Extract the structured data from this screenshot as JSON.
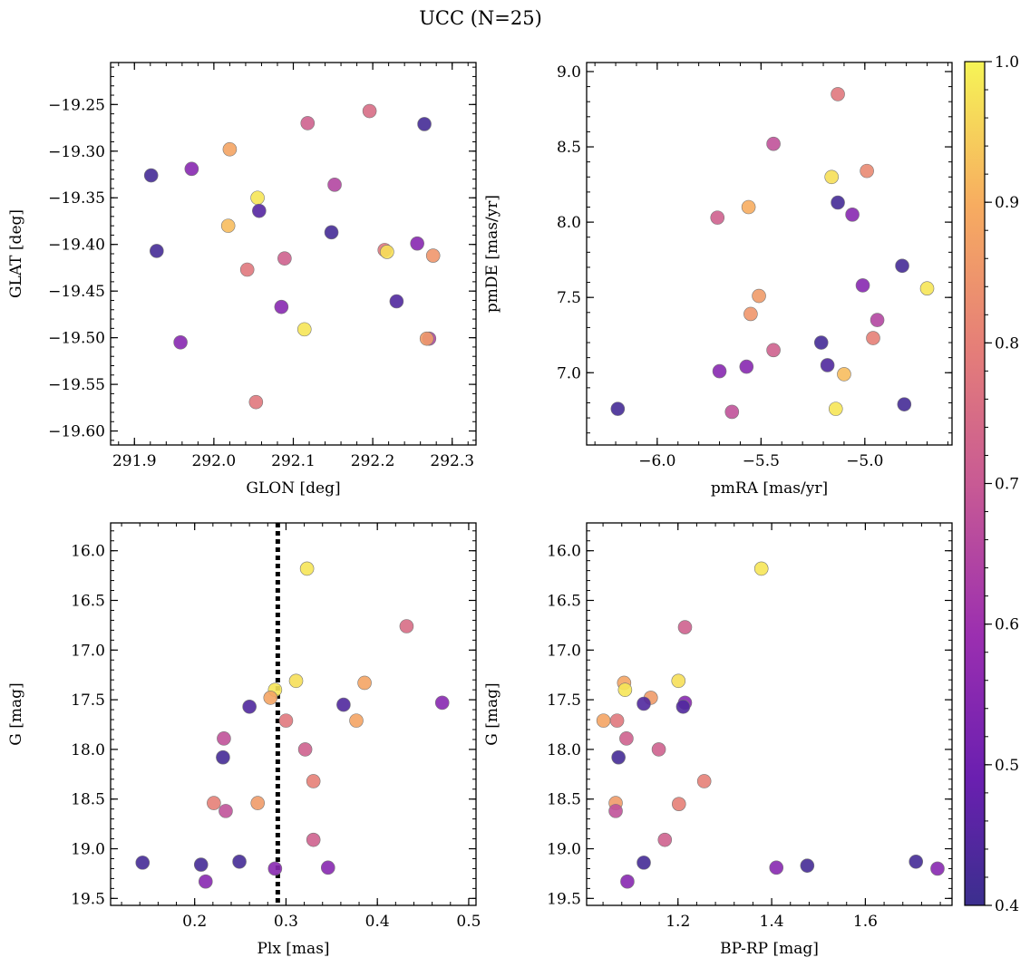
{
  "figure": {
    "title": "UCC (N=25)"
  },
  "colorbar": {
    "min": 0.4,
    "max": 1.0,
    "colormap": "plasma",
    "ticks": [
      "0.4",
      "0.5",
      "0.6",
      "0.7",
      "0.8",
      "0.9",
      "1.0"
    ]
  },
  "chart_data": [
    {
      "type": "scatter",
      "xlabel": "GLON [deg]",
      "ylabel": "GLAT [deg]",
      "xlim": [
        291.87,
        292.33
      ],
      "ylim": [
        -19.615,
        -19.205
      ],
      "xticks": [
        291.9,
        292.0,
        292.1,
        292.2,
        292.3
      ],
      "xtick_labels": [
        "291.9",
        "292.0",
        "292.1",
        "292.2",
        "292.3"
      ],
      "yticks": [
        -19.25,
        -19.3,
        -19.35,
        -19.4,
        -19.45,
        -19.5,
        -19.55,
        -19.6
      ],
      "ytick_labels": [
        "−19.25",
        "−19.30",
        "−19.35",
        "−19.40",
        "−19.45",
        "−19.50",
        "−19.55",
        "−19.60"
      ],
      "y_inverted": false,
      "points": [
        {
          "x": 292.265,
          "y": -19.271,
          "c": 0.42
        },
        {
          "x": 292.196,
          "y": -19.257,
          "c": 0.75
        },
        {
          "x": 292.118,
          "y": -19.27,
          "c": 0.72
        },
        {
          "x": 291.921,
          "y": -19.326,
          "c": 0.42
        },
        {
          "x": 291.972,
          "y": -19.319,
          "c": 0.55
        },
        {
          "x": 292.02,
          "y": -19.298,
          "c": 0.88
        },
        {
          "x": 292.152,
          "y": -19.336,
          "c": 0.65
        },
        {
          "x": 292.055,
          "y": -19.35,
          "c": 0.98
        },
        {
          "x": 292.057,
          "y": -19.364,
          "c": 0.45
        },
        {
          "x": 292.018,
          "y": -19.38,
          "c": 0.92
        },
        {
          "x": 292.148,
          "y": -19.387,
          "c": 0.42
        },
        {
          "x": 292.256,
          "y": -19.399,
          "c": 0.55
        },
        {
          "x": 292.215,
          "y": -19.406,
          "c": 0.78
        },
        {
          "x": 292.218,
          "y": -19.408,
          "c": 0.97
        },
        {
          "x": 292.276,
          "y": -19.412,
          "c": 0.85
        },
        {
          "x": 291.928,
          "y": -19.407,
          "c": 0.42
        },
        {
          "x": 292.089,
          "y": -19.415,
          "c": 0.72
        },
        {
          "x": 292.042,
          "y": -19.427,
          "c": 0.78
        },
        {
          "x": 292.23,
          "y": -19.461,
          "c": 0.44
        },
        {
          "x": 292.085,
          "y": -19.467,
          "c": 0.55
        },
        {
          "x": 292.114,
          "y": -19.491,
          "c": 0.98
        },
        {
          "x": 292.271,
          "y": -19.501,
          "c": 0.65
        },
        {
          "x": 292.268,
          "y": -19.501,
          "c": 0.86
        },
        {
          "x": 291.958,
          "y": -19.505,
          "c": 0.55
        },
        {
          "x": 292.053,
          "y": -19.569,
          "c": 0.78
        }
      ]
    },
    {
      "type": "scatter",
      "xlabel": "pmRA [mas/yr]",
      "ylabel": "pmDE [mas/yr]",
      "xlim": [
        -6.34,
        -4.58
      ],
      "ylim": [
        6.52,
        9.06
      ],
      "xticks": [
        -6.0,
        -5.5,
        -5.0
      ],
      "xtick_labels": [
        "−6.0",
        "−5.5",
        "−5.0"
      ],
      "yticks": [
        7.0,
        7.5,
        8.0,
        8.5,
        9.0
      ],
      "ytick_labels": [
        "7.0",
        "7.5",
        "8.0",
        "8.5",
        "9.0"
      ],
      "y_inverted": false,
      "points": [
        {
          "x": -5.13,
          "y": 8.85,
          "c": 0.78
        },
        {
          "x": -5.44,
          "y": 8.52,
          "c": 0.68
        },
        {
          "x": -4.99,
          "y": 8.34,
          "c": 0.82
        },
        {
          "x": -5.16,
          "y": 8.3,
          "c": 0.97
        },
        {
          "x": -5.13,
          "y": 8.13,
          "c": 0.42
        },
        {
          "x": -5.56,
          "y": 8.1,
          "c": 0.9
        },
        {
          "x": -5.06,
          "y": 8.05,
          "c": 0.55
        },
        {
          "x": -5.71,
          "y": 8.03,
          "c": 0.72
        },
        {
          "x": -4.82,
          "y": 7.71,
          "c": 0.42
        },
        {
          "x": -4.7,
          "y": 7.56,
          "c": 0.98
        },
        {
          "x": -5.01,
          "y": 7.58,
          "c": 0.55
        },
        {
          "x": -5.51,
          "y": 7.51,
          "c": 0.86
        },
        {
          "x": -5.55,
          "y": 7.39,
          "c": 0.85
        },
        {
          "x": -4.94,
          "y": 7.35,
          "c": 0.65
        },
        {
          "x": -4.96,
          "y": 7.23,
          "c": 0.8
        },
        {
          "x": -5.21,
          "y": 7.2,
          "c": 0.42
        },
        {
          "x": -5.44,
          "y": 7.15,
          "c": 0.72
        },
        {
          "x": -5.18,
          "y": 7.05,
          "c": 0.44
        },
        {
          "x": -5.57,
          "y": 7.04,
          "c": 0.55
        },
        {
          "x": -5.7,
          "y": 7.01,
          "c": 0.55
        },
        {
          "x": -5.1,
          "y": 6.99,
          "c": 0.92
        },
        {
          "x": -6.19,
          "y": 6.76,
          "c": 0.42
        },
        {
          "x": -4.81,
          "y": 6.79,
          "c": 0.42
        },
        {
          "x": -5.14,
          "y": 6.76,
          "c": 0.98
        },
        {
          "x": -5.64,
          "y": 6.74,
          "c": 0.68
        }
      ]
    },
    {
      "type": "scatter",
      "xlabel": "Plx [mas]",
      "ylabel": "G [mag]",
      "xlim": [
        0.108,
        0.508
      ],
      "ylim": [
        19.57,
        15.72
      ],
      "xticks": [
        0.2,
        0.3,
        0.4,
        0.5
      ],
      "xtick_labels": [
        "0.2",
        "0.3",
        "0.4",
        "0.5"
      ],
      "yticks": [
        16.0,
        16.5,
        17.0,
        17.5,
        18.0,
        18.5,
        19.0,
        19.5
      ],
      "ytick_labels": [
        "16.0",
        "16.5",
        "17.0",
        "17.5",
        "18.0",
        "18.5",
        "19.0",
        "19.5"
      ],
      "y_inverted": true,
      "vline": 0.291,
      "points": [
        {
          "x": 0.323,
          "y": 16.18,
          "c": 0.98
        },
        {
          "x": 0.432,
          "y": 16.76,
          "c": 0.75
        },
        {
          "x": 0.311,
          "y": 17.31,
          "c": 0.97
        },
        {
          "x": 0.386,
          "y": 17.33,
          "c": 0.88
        },
        {
          "x": 0.288,
          "y": 17.4,
          "c": 0.98
        },
        {
          "x": 0.283,
          "y": 17.48,
          "c": 0.88
        },
        {
          "x": 0.471,
          "y": 17.53,
          "c": 0.55
        },
        {
          "x": 0.363,
          "y": 17.55,
          "c": 0.44
        },
        {
          "x": 0.26,
          "y": 17.57,
          "c": 0.44
        },
        {
          "x": 0.3,
          "y": 17.71,
          "c": 0.78
        },
        {
          "x": 0.377,
          "y": 17.71,
          "c": 0.88
        },
        {
          "x": 0.232,
          "y": 17.89,
          "c": 0.68
        },
        {
          "x": 0.321,
          "y": 18.0,
          "c": 0.72
        },
        {
          "x": 0.231,
          "y": 18.08,
          "c": 0.42
        },
        {
          "x": 0.33,
          "y": 18.32,
          "c": 0.8
        },
        {
          "x": 0.221,
          "y": 18.54,
          "c": 0.8
        },
        {
          "x": 0.269,
          "y": 18.54,
          "c": 0.86
        },
        {
          "x": 0.234,
          "y": 18.62,
          "c": 0.68
        },
        {
          "x": 0.33,
          "y": 18.91,
          "c": 0.72
        },
        {
          "x": 0.249,
          "y": 19.13,
          "c": 0.42
        },
        {
          "x": 0.143,
          "y": 19.14,
          "c": 0.42
        },
        {
          "x": 0.207,
          "y": 19.16,
          "c": 0.42
        },
        {
          "x": 0.346,
          "y": 19.19,
          "c": 0.55
        },
        {
          "x": 0.288,
          "y": 19.2,
          "c": 0.55
        },
        {
          "x": 0.212,
          "y": 19.33,
          "c": 0.55
        }
      ]
    },
    {
      "type": "scatter",
      "xlabel": "BP-RP [mag]",
      "ylabel": "G [mag]",
      "xlim": [
        1.005,
        1.785
      ],
      "ylim": [
        19.57,
        15.72
      ],
      "xticks": [
        1.2,
        1.4,
        1.6
      ],
      "xtick_labels": [
        "1.2",
        "1.4",
        "1.6"
      ],
      "yticks": [
        16.0,
        16.5,
        17.0,
        17.5,
        18.0,
        18.5,
        19.0,
        19.5
      ],
      "ytick_labels": [
        "16.0",
        "16.5",
        "17.0",
        "17.5",
        "18.0",
        "18.5",
        "19.0",
        "19.5"
      ],
      "y_inverted": true,
      "points": [
        {
          "x": 1.378,
          "y": 16.18,
          "c": 0.98
        },
        {
          "x": 1.215,
          "y": 16.77,
          "c": 0.72
        },
        {
          "x": 1.201,
          "y": 17.31,
          "c": 0.97
        },
        {
          "x": 1.085,
          "y": 17.33,
          "c": 0.88
        },
        {
          "x": 1.087,
          "y": 17.4,
          "c": 0.98
        },
        {
          "x": 1.142,
          "y": 17.48,
          "c": 0.86
        },
        {
          "x": 1.127,
          "y": 17.54,
          "c": 0.44
        },
        {
          "x": 1.215,
          "y": 17.53,
          "c": 0.55
        },
        {
          "x": 1.211,
          "y": 17.57,
          "c": 0.44
        },
        {
          "x": 1.041,
          "y": 17.71,
          "c": 0.88
        },
        {
          "x": 1.07,
          "y": 17.71,
          "c": 0.78
        },
        {
          "x": 1.09,
          "y": 17.89,
          "c": 0.72
        },
        {
          "x": 1.159,
          "y": 18.0,
          "c": 0.72
        },
        {
          "x": 1.073,
          "y": 18.08,
          "c": 0.42
        },
        {
          "x": 1.256,
          "y": 18.32,
          "c": 0.8
        },
        {
          "x": 1.067,
          "y": 18.54,
          "c": 0.86
        },
        {
          "x": 1.202,
          "y": 18.55,
          "c": 0.8
        },
        {
          "x": 1.067,
          "y": 18.62,
          "c": 0.68
        },
        {
          "x": 1.172,
          "y": 18.91,
          "c": 0.72
        },
        {
          "x": 1.127,
          "y": 19.14,
          "c": 0.42
        },
        {
          "x": 1.708,
          "y": 19.13,
          "c": 0.42
        },
        {
          "x": 1.476,
          "y": 19.17,
          "c": 0.42
        },
        {
          "x": 1.41,
          "y": 19.19,
          "c": 0.55
        },
        {
          "x": 1.754,
          "y": 19.2,
          "c": 0.55
        },
        {
          "x": 1.092,
          "y": 19.33,
          "c": 0.55
        }
      ]
    }
  ]
}
